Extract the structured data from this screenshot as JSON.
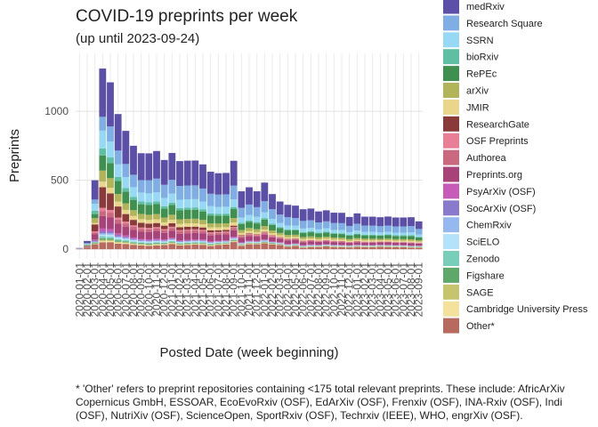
{
  "chart_data": {
    "type": "stacked_bar",
    "title": "COVID-19 preprints per week",
    "subtitle": "(up until 2023-09-24)",
    "x_label": "Posted Date (week beginning)",
    "y_label": "Preprints",
    "caption": [
      "* 'Other' refers to preprint repositories containing <175 total relevant preprints. These include: AfricArXiv",
      "Copernicus GmbH, ESSOAR, EcoEvoRxiv (OSF), EdArXiv (OSF), Frenxiv (OSF), INA-Rxiv (OSF), Indi",
      "(OSF), NutriXiv (OSF), ScienceOpen, SportRxiv (OSF), Techrxiv (IEEE), WHO, engrXiv (OSF)."
    ],
    "categories": [
      "2020-01-01",
      "2020-02-01",
      "2020-03-01",
      "2020-04-01",
      "2020-05-01",
      "2020-06-01",
      "2020-07-01",
      "2020-08-01",
      "2020-09-01",
      "2020-10-01",
      "2020-11-01",
      "2020-12-01",
      "2021-01-01",
      "2021-02-01",
      "2021-03-01",
      "2021-04-01",
      "2021-05-01",
      "2021-06-01",
      "2021-07-01",
      "2021-08-01",
      "2021-09-01",
      "2021-10-01",
      "2021-11-01",
      "2021-12-01",
      "2022-01-01",
      "2022-02-01",
      "2022-03-01",
      "2022-04-01",
      "2022-05-01",
      "2022-06-01",
      "2022-07-01",
      "2022-08-01",
      "2022-09-01",
      "2022-10-01",
      "2022-11-01",
      "2022-12-01",
      "2023-01-01",
      "2023-02-01",
      "2023-03-01",
      "2023-04-01",
      "2023-05-01",
      "2023-06-01",
      "2023-07-01",
      "2023-08-01",
      "2023-09-01"
    ],
    "ylim": [
      -70,
      1420
    ],
    "yticks": [
      0,
      500,
      1000
    ],
    "grid": true,
    "series": [
      {
        "name": "medRxiv",
        "color": "#5b4fa8",
        "values": [
          3,
          17,
          140,
          350,
          320,
          265,
          240,
          210,
          195,
          195,
          200,
          180,
          195,
          180,
          180,
          180,
          175,
          160,
          155,
          155,
          180,
          120,
          125,
          115,
          135,
          110,
          95,
          90,
          90,
          85,
          85,
          80,
          80,
          75,
          75,
          65,
          75,
          65,
          65,
          65,
          65,
          65,
          65,
          65,
          55
        ]
      },
      {
        "name": "Research Square",
        "color": "#7eaee3",
        "values": [
          0,
          2,
          30,
          100,
          110,
          100,
          95,
          90,
          90,
          95,
          100,
          95,
          100,
          100,
          100,
          100,
          95,
          90,
          90,
          90,
          100,
          70,
          75,
          70,
          80,
          70,
          60,
          60,
          55,
          55,
          55,
          50,
          50,
          50,
          50,
          45,
          50,
          45,
          45,
          45,
          45,
          45,
          45,
          45,
          40
        ]
      },
      {
        "name": "SSRN",
        "color": "#97d9f5",
        "values": [
          1,
          6,
          50,
          130,
          115,
          90,
          80,
          70,
          65,
          65,
          65,
          60,
          65,
          60,
          60,
          60,
          55,
          52,
          50,
          50,
          55,
          38,
          40,
          38,
          42,
          35,
          30,
          28,
          27,
          25,
          25,
          24,
          25,
          23,
          23,
          20,
          22,
          20,
          20,
          19,
          20,
          19,
          19,
          20,
          17
        ]
      },
      {
        "name": "bioRxiv",
        "color": "#5fbfa3",
        "values": [
          1,
          4,
          25,
          50,
          40,
          30,
          25,
          22,
          20,
          20,
          20,
          18,
          18,
          17,
          17,
          17,
          16,
          15,
          14,
          14,
          15,
          10,
          10,
          10,
          11,
          9,
          8,
          8,
          7,
          7,
          7,
          6,
          7,
          6,
          6,
          6,
          6,
          6,
          6,
          5,
          6,
          5,
          5,
          6,
          5
        ]
      },
      {
        "name": "RePEc",
        "color": "#3f8f4f",
        "values": [
          0,
          3,
          30,
          110,
          110,
          95,
          85,
          75,
          70,
          70,
          72,
          65,
          70,
          65,
          65,
          65,
          62,
          58,
          56,
          56,
          65,
          43,
          45,
          42,
          48,
          40,
          35,
          33,
          32,
          30,
          30,
          28,
          29,
          27,
          27,
          24,
          26,
          24,
          24,
          23,
          24,
          23,
          23,
          24,
          20
        ]
      },
      {
        "name": "arXiv",
        "color": "#b2b45a",
        "values": [
          1,
          4,
          35,
          80,
          70,
          55,
          48,
          42,
          38,
          38,
          38,
          34,
          36,
          33,
          33,
          33,
          31,
          29,
          28,
          28,
          32,
          21,
          22,
          21,
          24,
          20,
          17,
          16,
          16,
          15,
          15,
          14,
          14,
          13,
          13,
          12,
          13,
          12,
          12,
          11,
          12,
          11,
          11,
          12,
          10
        ]
      },
      {
        "name": "JMIR",
        "color": "#e9d68a",
        "values": [
          0,
          1,
          10,
          40,
          40,
          35,
          30,
          28,
          26,
          26,
          27,
          24,
          26,
          24,
          24,
          24,
          23,
          21,
          20,
          20,
          23,
          16,
          17,
          15,
          17,
          14,
          12,
          12,
          11,
          11,
          11,
          10,
          10,
          10,
          10,
          9,
          9,
          9,
          9,
          8,
          9,
          8,
          8,
          9,
          7
        ]
      },
      {
        "name": "ResearchGate",
        "color": "#8b3a3a",
        "values": [
          0,
          3,
          50,
          150,
          120,
          80,
          55,
          40,
          35,
          32,
          30,
          25,
          25,
          22,
          22,
          20,
          18,
          15,
          13,
          12,
          10,
          5,
          5,
          4,
          4,
          3,
          2,
          2,
          2,
          1,
          1,
          1,
          1,
          1,
          1,
          0,
          0,
          0,
          0,
          0,
          0,
          0,
          0,
          0,
          0
        ]
      },
      {
        "name": "OSF Preprints",
        "color": "#e97f97",
        "values": [
          0,
          1,
          10,
          25,
          20,
          15,
          13,
          11,
          10,
          10,
          10,
          9,
          9,
          8,
          8,
          8,
          8,
          7,
          7,
          7,
          8,
          5,
          5,
          5,
          6,
          5,
          4,
          4,
          4,
          4,
          4,
          3,
          3,
          3,
          3,
          3,
          3,
          3,
          3,
          3,
          3,
          3,
          3,
          3,
          3
        ]
      },
      {
        "name": "Authorea",
        "color": "#c9687f",
        "values": [
          0,
          1,
          10,
          35,
          35,
          30,
          25,
          22,
          20,
          20,
          20,
          18,
          19,
          17,
          17,
          17,
          16,
          15,
          14,
          14,
          15,
          10,
          10,
          9,
          10,
          8,
          7,
          7,
          6,
          6,
          6,
          5,
          5,
          5,
          5,
          4,
          5,
          4,
          4,
          4,
          4,
          4,
          4,
          4,
          4
        ]
      },
      {
        "name": "Preprints.org",
        "color": "#a8437a",
        "values": [
          1,
          5,
          40,
          90,
          85,
          70,
          62,
          55,
          52,
          52,
          54,
          48,
          52,
          48,
          48,
          48,
          46,
          43,
          42,
          42,
          48,
          32,
          34,
          31,
          36,
          30,
          26,
          25,
          24,
          22,
          22,
          21,
          22,
          20,
          20,
          18,
          19,
          18,
          18,
          17,
          18,
          17,
          17,
          18,
          15
        ]
      },
      {
        "name": "PsyArXiv (OSF)",
        "color": "#c65cb8",
        "values": [
          0,
          0,
          8,
          20,
          18,
          14,
          11,
          9,
          8,
          8,
          8,
          7,
          7,
          6,
          6,
          6,
          6,
          5,
          5,
          5,
          6,
          4,
          4,
          4,
          4,
          3,
          3,
          3,
          3,
          3,
          3,
          2,
          2,
          2,
          2,
          2,
          2,
          2,
          2,
          2,
          2,
          2,
          2,
          2,
          2
        ]
      },
      {
        "name": "SocArXiv (OSF)",
        "color": "#8a7acb",
        "values": [
          0,
          0,
          6,
          15,
          12,
          9,
          7,
          6,
          5,
          5,
          5,
          4,
          4,
          4,
          4,
          4,
          4,
          3,
          3,
          3,
          4,
          2,
          2,
          2,
          3,
          2,
          2,
          2,
          2,
          2,
          2,
          2,
          2,
          2,
          2,
          1,
          1,
          1,
          1,
          1,
          1,
          1,
          1,
          1,
          1
        ]
      },
      {
        "name": "ChemRxiv",
        "color": "#95b8ee",
        "values": [
          0,
          0,
          3,
          10,
          10,
          8,
          7,
          6,
          5,
          5,
          5,
          5,
          5,
          4,
          4,
          4,
          4,
          4,
          3,
          3,
          4,
          3,
          3,
          3,
          3,
          2,
          2,
          2,
          2,
          2,
          2,
          2,
          2,
          2,
          2,
          2,
          2,
          2,
          2,
          2,
          2,
          2,
          2,
          2,
          2
        ]
      },
      {
        "name": "SciELO",
        "color": "#b5e2fb",
        "values": [
          0,
          0,
          0,
          10,
          15,
          12,
          10,
          9,
          8,
          8,
          8,
          7,
          7,
          6,
          6,
          6,
          6,
          5,
          5,
          5,
          6,
          4,
          4,
          4,
          4,
          3,
          3,
          3,
          3,
          3,
          3,
          2,
          2,
          2,
          2,
          2,
          2,
          2,
          2,
          2,
          2,
          2,
          2,
          2,
          2
        ]
      },
      {
        "name": "Zenodo",
        "color": "#77cfb9",
        "values": [
          0,
          1,
          6,
          15,
          12,
          10,
          8,
          7,
          6,
          6,
          6,
          5,
          6,
          5,
          5,
          5,
          5,
          5,
          4,
          4,
          5,
          3,
          3,
          3,
          4,
          3,
          3,
          2,
          2,
          2,
          2,
          2,
          2,
          2,
          2,
          2,
          2,
          2,
          2,
          2,
          2,
          2,
          2,
          2,
          2
        ]
      },
      {
        "name": "Figshare",
        "color": "#5ea86a",
        "values": [
          0,
          1,
          5,
          12,
          10,
          8,
          7,
          6,
          6,
          6,
          6,
          5,
          6,
          5,
          5,
          5,
          5,
          4,
          4,
          4,
          5,
          3,
          3,
          3,
          3,
          3,
          2,
          2,
          2,
          2,
          2,
          2,
          2,
          2,
          2,
          2,
          2,
          2,
          2,
          2,
          2,
          2,
          2,
          2,
          2
        ]
      },
      {
        "name": "SAGE",
        "color": "#c6c56e",
        "values": [
          0,
          0,
          4,
          10,
          9,
          7,
          6,
          5,
          5,
          5,
          5,
          4,
          5,
          4,
          4,
          4,
          4,
          4,
          4,
          4,
          4,
          3,
          3,
          3,
          3,
          3,
          2,
          2,
          2,
          2,
          2,
          2,
          2,
          2,
          2,
          2,
          2,
          2,
          2,
          2,
          2,
          2,
          2,
          2,
          2
        ]
      },
      {
        "name": "Cambridge University Press",
        "color": "#f3e29c",
        "values": [
          0,
          0,
          2,
          8,
          8,
          7,
          6,
          5,
          5,
          5,
          5,
          4,
          5,
          4,
          4,
          4,
          4,
          4,
          3,
          3,
          4,
          3,
          3,
          2,
          3,
          2,
          2,
          2,
          2,
          2,
          2,
          2,
          2,
          2,
          2,
          2,
          2,
          2,
          2,
          2,
          2,
          2,
          2,
          2,
          2
        ]
      },
      {
        "name": "Other*",
        "color": "#b86a5e",
        "values": [
          2,
          11,
          36,
          50,
          51,
          40,
          38,
          32,
          27,
          24,
          28,
          30,
          38,
          27,
          30,
          33,
          32,
          23,
          31,
          34,
          52,
          25,
          36,
          36,
          43,
          35,
          31,
          19,
          24,
          11,
          16,
          16,
          20,
          16,
          15,
          13,
          17,
          15,
          15,
          17,
          16,
          15,
          15,
          11,
          11
        ]
      }
    ]
  }
}
